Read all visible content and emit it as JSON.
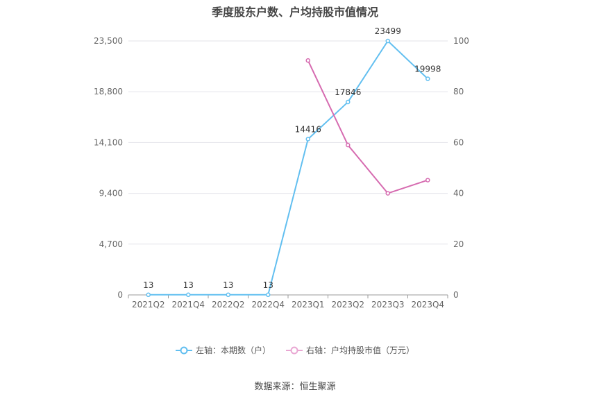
{
  "chart_data": {
    "type": "line",
    "title": "季度股东户数、户均持股市值情况",
    "categories": [
      "2021Q2",
      "2021Q4",
      "2022Q2",
      "2022Q4",
      "2023Q1",
      "2023Q2",
      "2023Q3",
      "2023Q4"
    ],
    "left_axis": {
      "ylim": [
        0,
        23500
      ],
      "ticks": [
        "0",
        "4,700",
        "9,400",
        "14,100",
        "18,800",
        "23,500"
      ]
    },
    "right_axis": {
      "ylim": [
        0,
        100
      ],
      "ticks": [
        "0",
        "20",
        "40",
        "60",
        "80",
        "100"
      ]
    },
    "series": [
      {
        "name": "左轴：本期数（户）",
        "axis": "left",
        "color": "#62bff0",
        "values": [
          13,
          13,
          13,
          13,
          14416,
          17846,
          23499,
          19998
        ],
        "labels": [
          "13",
          "13",
          "13",
          "13",
          "14416",
          "17846",
          "23499",
          "19998"
        ]
      },
      {
        "name": "右轴：户均持股市值（万元）",
        "axis": "right",
        "color": "#d66bb0",
        "values": [
          null,
          null,
          null,
          null,
          92.3,
          59.0,
          40.0,
          45.2
        ]
      }
    ],
    "grid": true,
    "legend_position": "bottom"
  },
  "footer": {
    "source": "数据来源：恒生聚源"
  }
}
